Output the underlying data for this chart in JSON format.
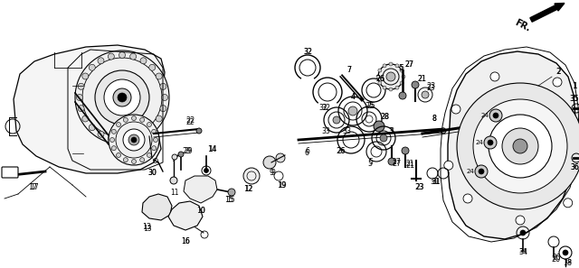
{
  "background_color": "#ffffff",
  "figsize": [
    6.4,
    2.97
  ],
  "dpi": 100,
  "text_color": "#000000"
}
